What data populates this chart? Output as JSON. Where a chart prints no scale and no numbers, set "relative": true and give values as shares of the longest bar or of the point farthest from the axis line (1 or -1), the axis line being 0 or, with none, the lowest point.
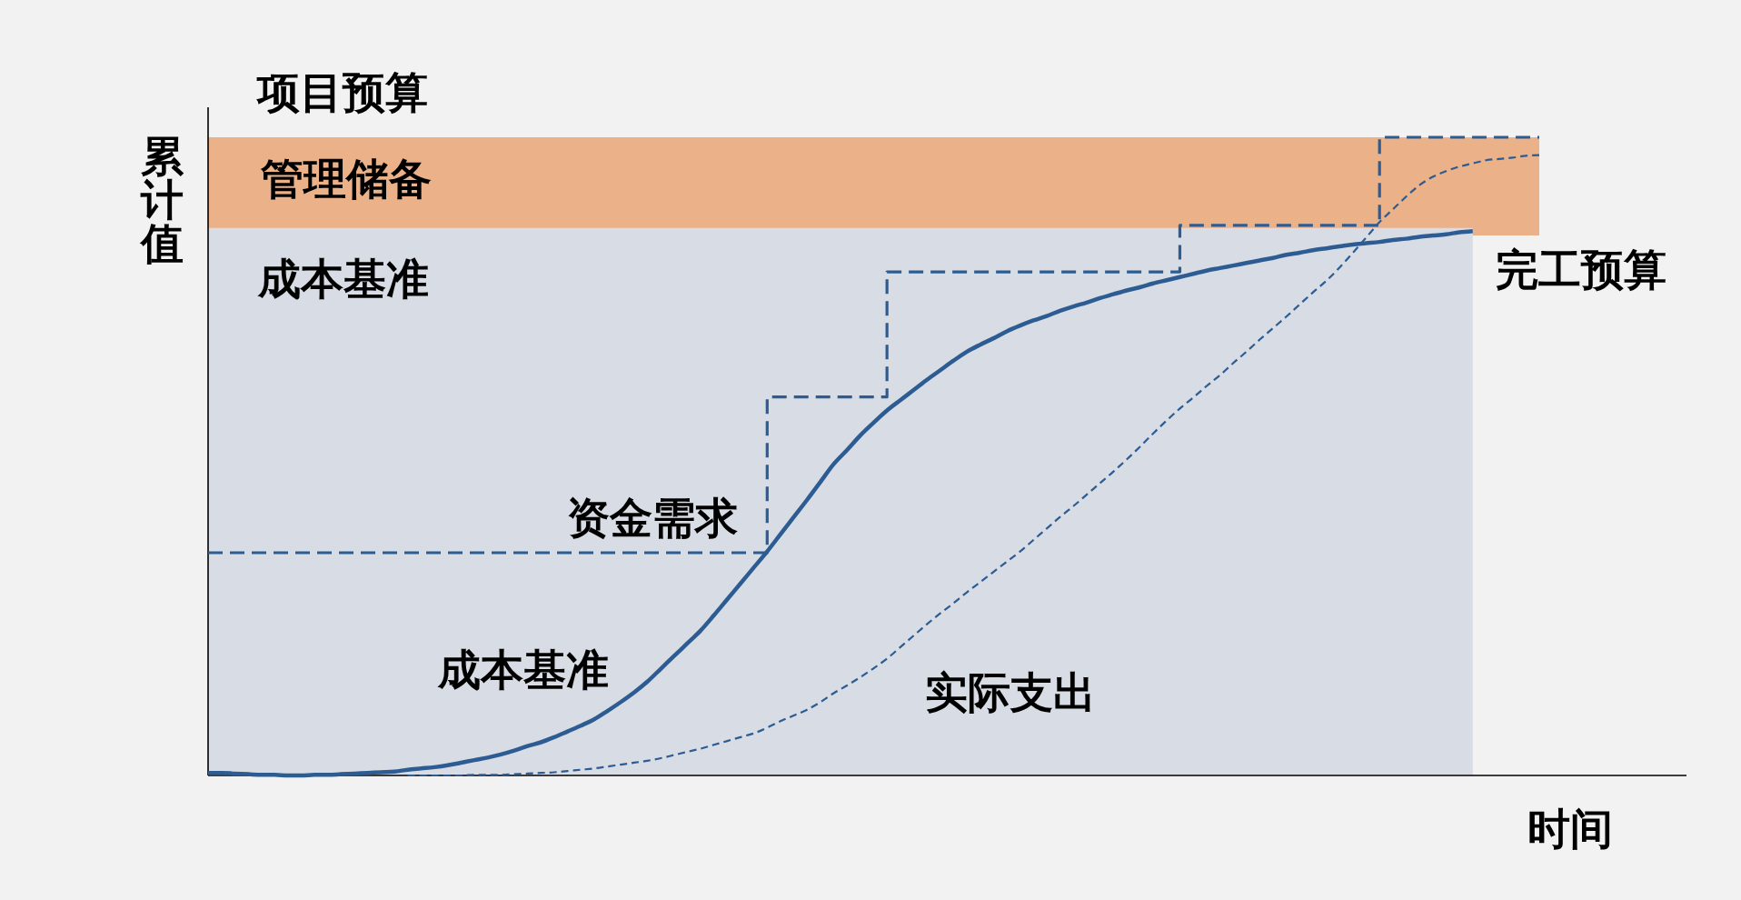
{
  "chart_data": {
    "type": "line",
    "relative": true,
    "xlabel": "时间",
    "ylabel": "累计值",
    "grid": false,
    "tick_labels": false,
    "categories": [
      null,
      null,
      null,
      null,
      null,
      null,
      null,
      null,
      null,
      null,
      null,
      null,
      null,
      null,
      null,
      null,
      null,
      null,
      null,
      null,
      null,
      null,
      null,
      null,
      null,
      null,
      null,
      null,
      null,
      null,
      null,
      null,
      null,
      null,
      null,
      null,
      null,
      null,
      null,
      null,
      null,
      null,
      null,
      null,
      null,
      null,
      null,
      null,
      null,
      null,
      null,
      null,
      null,
      null,
      null,
      null,
      null,
      null,
      null,
      null,
      null,
      null,
      null,
      null,
      null,
      null,
      null,
      null,
      null,
      null,
      null,
      null,
      null,
      null,
      null,
      null,
      null,
      null,
      null,
      null,
      null,
      null,
      null,
      null,
      null,
      null,
      null,
      null,
      null,
      null,
      null,
      null,
      null,
      null,
      null,
      null,
      null,
      null,
      null,
      null,
      null
    ],
    "series": [
      {
        "name": "成本基准",
        "type": "area",
        "color": "#d7dce5",
        "values": [
          0.858,
          0.858,
          0.858,
          0.858,
          0.858,
          0.858,
          0.858,
          0.858,
          0.858,
          0.858,
          0.858,
          0.858,
          0.858,
          0.858,
          0.858,
          0.858,
          0.858,
          0.858,
          0.858,
          0.858,
          0.858,
          0.858,
          0.858,
          0.858,
          0.858,
          0.858,
          0.858,
          0.858,
          0.858,
          0.858,
          0.858,
          0.858,
          0.858,
          0.858,
          0.858,
          0.858,
          0.858,
          0.858,
          0.858,
          0.858,
          0.858,
          0.858,
          0.858,
          0.858,
          0.858,
          0.858,
          0.858,
          0.858,
          0.858,
          0.858,
          0.858,
          0.858,
          0.858,
          0.858,
          0.858,
          0.858,
          0.858,
          0.858,
          0.858,
          0.858,
          0.858,
          0.858,
          0.858,
          0.858,
          0.858,
          0.858,
          0.858,
          0.858,
          0.858,
          0.858,
          0.858,
          0.858,
          0.858,
          0.858,
          0.858,
          0.858,
          0.858,
          0.858,
          0.858,
          0.858,
          0.858,
          0.858,
          0.858,
          0.858,
          0.858,
          0.858,
          0.858,
          0.858,
          0.858,
          0.858,
          0.858,
          0.858,
          0.858,
          0.858,
          0.858,
          0.858,
          null,
          null,
          null,
          null,
          null
        ]
      },
      {
        "name": "资金需求",
        "type": "step",
        "color": "#2d5c93",
        "line_style": "dashed",
        "values": [
          0.349,
          0.349,
          0.349,
          0.349,
          0.349,
          0.349,
          0.349,
          0.349,
          0.349,
          0.349,
          0.349,
          0.349,
          0.349,
          0.349,
          0.349,
          0.349,
          0.349,
          0.349,
          0.349,
          0.349,
          0.349,
          0.349,
          0.349,
          0.349,
          0.349,
          0.349,
          0.349,
          0.349,
          0.349,
          0.349,
          0.349,
          0.349,
          0.349,
          0.349,
          0.349,
          0.349,
          0.349,
          0.349,
          0.349,
          0.349,
          0.349,
          0.349,
          0.593,
          0.593,
          0.593,
          0.593,
          0.593,
          0.593,
          0.593,
          0.593,
          0.593,
          0.789,
          0.789,
          0.789,
          0.789,
          0.789,
          0.789,
          0.789,
          0.789,
          0.789,
          0.789,
          0.789,
          0.789,
          0.789,
          0.789,
          0.789,
          0.789,
          0.789,
          0.789,
          0.789,
          0.789,
          0.789,
          0.789,
          0.862,
          0.862,
          0.862,
          0.862,
          0.862,
          0.862,
          0.862,
          0.862,
          0.862,
          0.862,
          0.862,
          0.862,
          0.862,
          0.862,
          0.862,
          1,
          1,
          1,
          1,
          1,
          1,
          1,
          1,
          1,
          1,
          1,
          1,
          1
        ]
      },
      {
        "name": "成本基准",
        "color": "#2d5c93",
        "line_style": "solid",
        "values": [
          0.004,
          0.004,
          0.003,
          0.002,
          0.001,
          0.001,
          0,
          0,
          0.001,
          0.001,
          0.002,
          0.003,
          0.004,
          0.005,
          0.006,
          0.009,
          0.011,
          0.013,
          0.016,
          0.02,
          0.024,
          0.028,
          0.033,
          0.039,
          0.046,
          0.052,
          0.06,
          0.069,
          0.078,
          0.088,
          0.101,
          0.115,
          0.13,
          0.147,
          0.167,
          0.187,
          0.207,
          0.227,
          0.251,
          0.276,
          0.301,
          0.326,
          0.351,
          0.378,
          0.405,
          0.432,
          0.46,
          0.488,
          0.51,
          0.533,
          0.553,
          0.572,
          0.588,
          0.604,
          0.62,
          0.635,
          0.65,
          0.664,
          0.675,
          0.685,
          0.696,
          0.705,
          0.713,
          0.72,
          0.728,
          0.735,
          0.741,
          0.748,
          0.754,
          0.76,
          0.765,
          0.771,
          0.776,
          0.781,
          0.786,
          0.791,
          0.795,
          0.799,
          0.803,
          0.807,
          0.811,
          0.816,
          0.819,
          0.823,
          0.826,
          0.829,
          0.832,
          0.834,
          0.836,
          0.839,
          0.841,
          0.844,
          0.846,
          0.848,
          0.851,
          0.853,
          null,
          null,
          null,
          null,
          null
        ]
      },
      {
        "name": "实际支出",
        "color": "#2d5c93",
        "line_style": "dashed",
        "values": [
          null,
          null,
          null,
          null,
          null,
          null,
          null,
          null,
          null,
          null,
          null,
          null,
          null,
          null,
          null,
          0,
          0,
          0,
          0,
          0,
          0.001,
          0.001,
          0.001,
          0.002,
          0.003,
          0.004,
          0.005,
          0.007,
          0.009,
          0.011,
          0.014,
          0.017,
          0.02,
          0.023,
          0.027,
          0.032,
          0.037,
          0.042,
          0.048,
          0.054,
          0.06,
          0.066,
          0.075,
          0.085,
          0.094,
          0.103,
          0.115,
          0.129,
          0.141,
          0.154,
          0.168,
          0.183,
          0.201,
          0.219,
          0.237,
          0.254,
          0.27,
          0.287,
          0.303,
          0.319,
          0.335,
          0.351,
          0.369,
          0.387,
          0.405,
          0.422,
          0.44,
          0.458,
          0.476,
          0.495,
          0.515,
          0.536,
          0.556,
          0.575,
          0.592,
          0.61,
          0.627,
          0.646,
          0.664,
          0.683,
          0.701,
          0.719,
          0.738,
          0.757,
          0.775,
          0.796,
          0.819,
          0.843,
          0.867,
          0.887,
          0.907,
          0.925,
          0.938,
          0.947,
          0.954,
          0.959,
          0.964,
          0.966,
          0.968,
          0.971,
          0.972
        ]
      }
    ],
    "bands": [
      {
        "axis": "y",
        "from": 0.846,
        "to": 1,
        "label": "管理储备",
        "color": "#ebb189"
      }
    ],
    "annotations": [
      {
        "text": "项目预算",
        "y": 1
      },
      "完工预算"
    ]
  }
}
